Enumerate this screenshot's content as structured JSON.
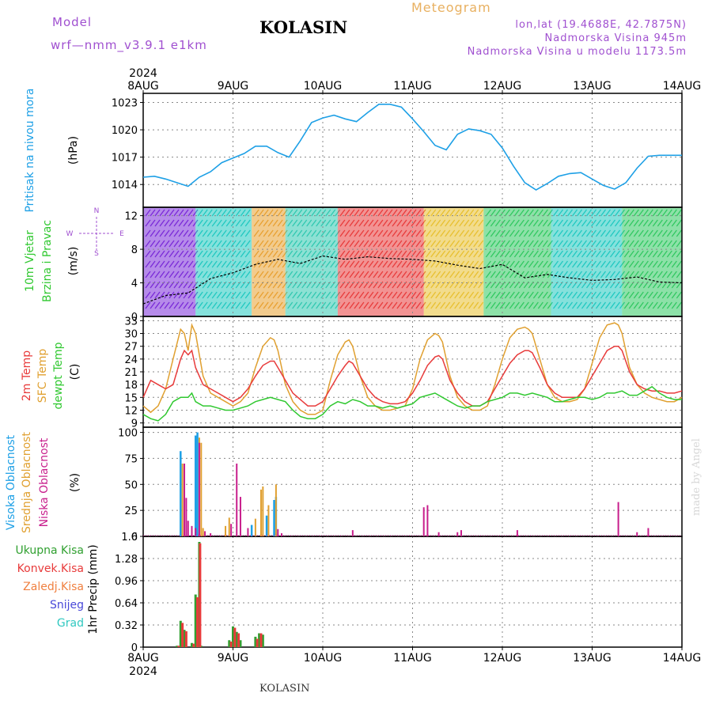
{
  "header": {
    "model_label": "Model",
    "model_name": "wrf—nmm_v3.9.1  e1km",
    "station": "KOLASIN",
    "meteogram_label": "Meteogram",
    "lonlat": "lon,lat (19.4688E, 42.7875N)",
    "altitude": "Nadmorska Visina 945m",
    "model_altitude": "Nadmorska Visina u modelu 1173.5m",
    "footer_station": "KOLASIN",
    "credit": "made by Angel"
  },
  "colors": {
    "pressure": "#1ea0e6",
    "temp2m": "#e83b3b",
    "sfc_temp": "#e0a030",
    "dewpt": "#30c830",
    "high_cloud": "#1ea0e6",
    "mid_cloud": "#e0a030",
    "low_cloud": "#c81e8c",
    "total_precip": "#30a030",
    "conv_precip": "#e83b3b",
    "purple_text": "#a050d0",
    "orange_text": "#e8b060"
  },
  "chart_data": [
    {
      "type": "line",
      "panel": "pressure",
      "title": "",
      "ylabel_lines": [
        "Pritisak na nivou mora",
        "(hPa)"
      ],
      "year": "2024",
      "x_ticks": [
        "8AUG",
        "9AUG",
        "10AUG",
        "11AUG",
        "12AUG",
        "13AUG",
        "14AUG"
      ],
      "xlim_hours": [
        0,
        144
      ],
      "ylim": [
        1011.5,
        1024
      ],
      "y_ticks": [
        "1014",
        "1017",
        "1020",
        "1023"
      ],
      "series": [
        {
          "x": [
            0,
            3,
            6,
            9,
            12,
            15,
            18,
            21,
            24,
            27,
            30,
            33,
            36,
            39,
            42,
            45,
            48,
            51,
            54,
            57,
            60,
            63,
            66,
            69,
            72,
            75,
            78,
            81,
            84,
            87,
            90,
            93,
            96,
            99,
            102,
            105,
            108,
            111,
            114,
            117,
            120,
            123,
            126,
            129,
            132,
            135,
            138,
            141,
            144
          ],
          "values": [
            1014.8,
            1014.9,
            1014.6,
            1014.2,
            1013.8,
            1014.8,
            1015.4,
            1016.4,
            1016.9,
            1017.4,
            1018.2,
            1018.2,
            1017.5,
            1017.0,
            1018.8,
            1020.8,
            1021.3,
            1021.6,
            1021.2,
            1020.9,
            1021.9,
            1022.8,
            1022.8,
            1022.5,
            1021.2,
            1019.8,
            1018.3,
            1017.8,
            1019.5,
            1020.1,
            1019.9,
            1019.5,
            1018.0,
            1016.0,
            1014.2,
            1013.4,
            1014.1,
            1014.9,
            1015.2,
            1015.3,
            1014.6,
            1013.9,
            1013.5,
            1014.2,
            1015.8,
            1017.1,
            1017.2,
            1017.2,
            1017.2
          ]
        }
      ]
    },
    {
      "type": "line",
      "panel": "wind",
      "ylabel_lines": [
        "10m Vjetar",
        "Brzina i Pravac",
        "(m/s)"
      ],
      "compass_letters": [
        "N",
        "S",
        "W",
        "E"
      ],
      "xlim_hours": [
        0,
        144
      ],
      "ylim": [
        0,
        13
      ],
      "y_ticks": [
        "0",
        "4",
        "8",
        "12"
      ],
      "series": [
        {
          "x": [
            0,
            6,
            12,
            18,
            24,
            30,
            36,
            42,
            48,
            54,
            60,
            66,
            72,
            78,
            84,
            90,
            96,
            102,
            108,
            114,
            120,
            126,
            132,
            138,
            144
          ],
          "values": [
            1.5,
            2.5,
            2.8,
            4.5,
            5.2,
            6.2,
            6.8,
            6.3,
            7.2,
            6.8,
            7.1,
            6.9,
            6.8,
            6.6,
            6.1,
            5.7,
            6.2,
            4.6,
            5.0,
            4.6,
            4.3,
            4.4,
            4.7,
            4.1,
            4.0
          ]
        }
      ],
      "color_bands": [
        {
          "x_from": 0,
          "x_to": 14,
          "color": "#7a2bd8"
        },
        {
          "x_from": 14,
          "x_to": 29,
          "color": "#20c8c0"
        },
        {
          "x_from": 29,
          "x_to": 38,
          "color": "#e8a030"
        },
        {
          "x_from": 38,
          "x_to": 52,
          "color": "#30c8b0"
        },
        {
          "x_from": 52,
          "x_to": 75,
          "color": "#e83b3b"
        },
        {
          "x_from": 75,
          "x_to": 91,
          "color": "#e8c030"
        },
        {
          "x_from": 91,
          "x_to": 109,
          "color": "#30c860"
        },
        {
          "x_from": 109,
          "x_to": 128,
          "color": "#20c8c0"
        },
        {
          "x_from": 128,
          "x_to": 144,
          "color": "#30c860"
        }
      ]
    },
    {
      "type": "line",
      "panel": "temperature",
      "ylabel_lines": [
        "2m Temp",
        "SFC Temp",
        "dewpt Temp",
        "(C)"
      ],
      "xlim_hours": [
        0,
        144
      ],
      "ylim": [
        8,
        34
      ],
      "y_ticks": [
        "9",
        "12",
        "15",
        "18",
        "21",
        "24",
        "27",
        "30",
        "33"
      ],
      "series": [
        {
          "name": "2m Temp",
          "x": [
            0,
            2,
            4,
            6,
            8,
            10,
            11,
            12,
            13,
            14,
            16,
            18,
            20,
            22,
            24,
            26,
            28,
            30,
            32,
            34,
            35,
            36,
            38,
            40,
            42,
            44,
            46,
            48,
            50,
            52,
            54,
            55,
            56,
            58,
            60,
            62,
            64,
            66,
            68,
            70,
            72,
            74,
            76,
            78,
            79,
            80,
            82,
            84,
            86,
            88,
            90,
            92,
            94,
            96,
            98,
            100,
            102,
            103,
            104,
            106,
            108,
            110,
            112,
            114,
            116,
            118,
            120,
            122,
            124,
            126,
            127,
            128,
            130,
            132,
            134,
            136,
            138,
            140,
            142,
            144
          ],
          "values": [
            15,
            19,
            18,
            17,
            18,
            24,
            26,
            25,
            26,
            22,
            18,
            17,
            16,
            15,
            14,
            15,
            17,
            20,
            22.5,
            23.5,
            23.5,
            22,
            19,
            16,
            14.5,
            13,
            13,
            14,
            17,
            20,
            22.5,
            23.5,
            23,
            20,
            17,
            15,
            14,
            13.5,
            13.5,
            14,
            16,
            19,
            22.5,
            24.5,
            24.8,
            24,
            19,
            16,
            14,
            13,
            13,
            14,
            17,
            20,
            23,
            25,
            26,
            26,
            25.5,
            22,
            18,
            16,
            15,
            15,
            15,
            17,
            20,
            23,
            26,
            27,
            27,
            26,
            21,
            18,
            17,
            16.5,
            16.5,
            16,
            16,
            16.5
          ]
        },
        {
          "name": "SFC Temp",
          "x": [
            0,
            2,
            4,
            6,
            8,
            10,
            11,
            12,
            13,
            14,
            16,
            18,
            20,
            22,
            24,
            26,
            28,
            30,
            32,
            34,
            35,
            36,
            38,
            40,
            42,
            44,
            46,
            48,
            50,
            52,
            54,
            55,
            56,
            58,
            60,
            62,
            64,
            66,
            68,
            70,
            72,
            74,
            76,
            78,
            79,
            80,
            82,
            84,
            86,
            88,
            90,
            92,
            94,
            96,
            98,
            100,
            102,
            103,
            104,
            106,
            108,
            110,
            112,
            114,
            116,
            118,
            120,
            122,
            124,
            126,
            127,
            128,
            130,
            132,
            134,
            136,
            138,
            140,
            142,
            144
          ],
          "values": [
            13,
            11.5,
            13,
            17,
            24,
            31,
            30,
            26,
            32,
            30,
            20,
            16,
            15,
            14,
            13,
            14,
            16,
            22,
            27,
            29,
            28.5,
            26,
            18,
            14,
            12,
            11,
            11,
            12,
            19,
            25,
            28,
            28.5,
            27,
            20,
            15,
            13,
            12,
            12,
            12.5,
            13,
            17,
            24,
            28.5,
            30,
            29.5,
            28,
            20,
            15,
            13,
            12,
            12,
            13,
            18,
            24,
            29,
            31,
            31.5,
            31,
            30,
            24,
            18,
            15,
            14,
            14,
            14.5,
            17,
            23,
            29,
            32,
            32.5,
            32,
            30,
            22,
            18,
            16,
            15,
            14.5,
            14,
            14,
            15
          ]
        },
        {
          "name": "dewpt Temp",
          "x": [
            0,
            2,
            4,
            6,
            8,
            10,
            12,
            13,
            14,
            16,
            18,
            20,
            22,
            24,
            26,
            28,
            30,
            32,
            34,
            36,
            38,
            40,
            42,
            44,
            46,
            48,
            50,
            52,
            54,
            56,
            58,
            60,
            62,
            64,
            66,
            68,
            70,
            72,
            74,
            76,
            78,
            80,
            82,
            84,
            86,
            88,
            90,
            92,
            94,
            96,
            98,
            100,
            102,
            104,
            106,
            108,
            110,
            112,
            114,
            116,
            118,
            120,
            122,
            124,
            126,
            128,
            130,
            132,
            134,
            136,
            138,
            140,
            142,
            144
          ],
          "values": [
            11,
            10,
            9.5,
            11,
            14,
            15,
            15,
            16,
            14,
            13,
            13,
            12.5,
            12,
            12,
            12.5,
            13,
            14,
            14.5,
            15,
            14.5,
            14,
            12,
            10.5,
            10,
            10,
            11,
            13,
            14,
            13.5,
            14.5,
            14,
            13,
            13,
            12.5,
            13,
            12.5,
            13,
            13.5,
            15,
            15.5,
            16,
            15,
            14,
            13,
            12.5,
            13,
            13,
            14,
            14.5,
            15,
            16,
            16,
            15.5,
            16,
            15.5,
            15,
            14,
            14,
            14.5,
            15,
            15,
            14.5,
            15,
            16,
            16,
            16.5,
            15.5,
            15.5,
            16.5,
            17.5,
            16,
            15,
            14.5,
            14.5
          ]
        }
      ]
    },
    {
      "type": "bar",
      "panel": "clouds",
      "ylabel_lines": [
        "Visoka Oblacnost",
        "Srednja Oblacnost",
        "Niska Oblacnost",
        "(%)"
      ],
      "xlim_hours": [
        0,
        144
      ],
      "ylim": [
        0,
        100
      ],
      "y_ticks": [
        "0",
        "25",
        "50",
        "75",
        "100"
      ],
      "series": [
        {
          "name": "Visoka Oblacnost",
          "x": [
            10,
            14,
            14.5,
            33,
            35,
            35.5,
            29
          ],
          "values": [
            82,
            97,
            100,
            20,
            35,
            38,
            11
          ]
        },
        {
          "name": "Srednja Oblacnost",
          "x": [
            10.5,
            15,
            15.5,
            16,
            22,
            23,
            30,
            31.5,
            32,
            33.5,
            35.5
          ],
          "values": [
            70,
            95,
            90,
            8,
            10,
            18,
            17,
            45,
            48,
            30,
            50
          ]
        },
        {
          "name": "Niska Oblacnost",
          "x": [
            11,
            11.5,
            12,
            13,
            14,
            15,
            16.5,
            18,
            23.5,
            25,
            26,
            28,
            36,
            37,
            56,
            75,
            76,
            79,
            84,
            85,
            100,
            127,
            132,
            135
          ],
          "values": [
            70,
            37,
            15,
            10,
            8,
            90,
            5,
            3,
            12,
            70,
            38,
            8,
            7,
            3,
            6,
            28,
            30,
            4,
            4,
            6,
            6,
            33,
            4,
            8
          ]
        }
      ]
    },
    {
      "type": "bar",
      "panel": "precip",
      "ylabel_lines": [
        "1hr Precip (mm)"
      ],
      "legend_labels": [
        "Ukupna Kisa",
        "Konvek.Kisa",
        "Zaledj.Kisa",
        "Snijeg",
        "Grad"
      ],
      "legend_colors": [
        "#30a030",
        "#e83b3b",
        "#f08040",
        "#4848d8",
        "#30c8c0"
      ],
      "xlim_hours": [
        0,
        144
      ],
      "ylim": [
        0,
        1.6
      ],
      "y_ticks": [
        "0",
        "0.32",
        "0.64",
        "0.96",
        "1.28",
        "1.6"
      ],
      "series": [
        {
          "name": "Ukupna Kisa",
          "x": [
            9,
            10,
            11,
            13,
            14,
            15,
            15.5,
            23,
            24,
            25,
            26,
            30,
            31,
            32
          ],
          "values": [
            0.02,
            0.38,
            0.25,
            0.06,
            0.76,
            1.52,
            0.02,
            0.1,
            0.3,
            0.22,
            0.1,
            0.15,
            0.2,
            0.18
          ]
        },
        {
          "name": "Konvek.Kisa",
          "x": [
            9.5,
            10.5,
            11.5,
            13.5,
            14.5,
            15.2,
            23.5,
            24.5,
            25.5,
            30.5,
            31.5
          ],
          "values": [
            0.02,
            0.35,
            0.23,
            0.05,
            0.72,
            1.5,
            0.08,
            0.28,
            0.2,
            0.12,
            0.2
          ]
        }
      ]
    }
  ]
}
